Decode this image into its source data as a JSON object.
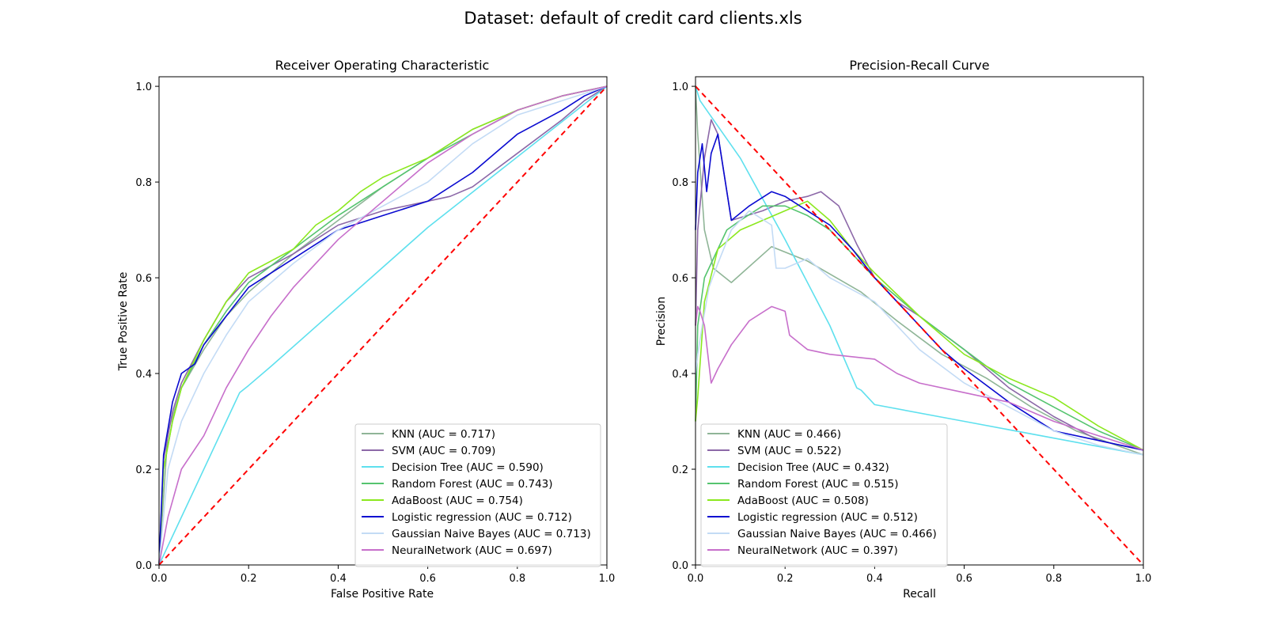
{
  "figure": {
    "suptitle": "Dataset: default of credit card clients.xls"
  },
  "chart_data": [
    {
      "type": "line",
      "id": "roc",
      "title": "Receiver Operating Characteristic",
      "xlabel": "False Positive Rate",
      "ylabel": "True Positive Rate",
      "xlim": [
        0,
        1
      ],
      "ylim": [
        0,
        1.02
      ],
      "xticks": [
        "0.0",
        "0.2",
        "0.4",
        "0.6",
        "0.8",
        "1.0"
      ],
      "yticks": [
        "0.0",
        "0.2",
        "0.4",
        "0.6",
        "0.8",
        "1.0"
      ],
      "grid": false,
      "legend_position": "lower-right",
      "reference_line": {
        "style": "dashed",
        "color": "#ff0000",
        "x": [
          0,
          1
        ],
        "y": [
          0,
          1
        ]
      },
      "series": [
        {
          "name": "KNN (AUC = 0.717)",
          "color": "#8fb597",
          "x": [
            0,
            0.02,
            0.05,
            0.1,
            0.15,
            0.2,
            0.3,
            0.4,
            0.5,
            0.6,
            0.7,
            0.8,
            0.9,
            1.0
          ],
          "y": [
            0,
            0.28,
            0.37,
            0.45,
            0.52,
            0.57,
            0.65,
            0.72,
            0.79,
            0.85,
            0.91,
            0.95,
            0.98,
            1.0
          ]
        },
        {
          "name": "SVM (AUC = 0.709)",
          "color": "#8c68a8",
          "x": [
            0,
            0.01,
            0.03,
            0.05,
            0.1,
            0.15,
            0.2,
            0.3,
            0.4,
            0.5,
            0.6,
            0.65,
            0.7,
            0.8,
            0.9,
            0.95,
            1.0
          ],
          "y": [
            0,
            0.22,
            0.32,
            0.38,
            0.47,
            0.55,
            0.6,
            0.65,
            0.71,
            0.74,
            0.76,
            0.77,
            0.79,
            0.86,
            0.93,
            0.97,
            1.0
          ]
        },
        {
          "name": "Decision Tree (AUC = 0.590)",
          "color": "#5ee0ee",
          "x": [
            0,
            0.18,
            0.2,
            0.25,
            0.6,
            1.0
          ],
          "y": [
            0,
            0.36,
            0.375,
            0.415,
            0.705,
            1.0
          ]
        },
        {
          "name": "Random Forest (AUC = 0.743)",
          "color": "#55c46f",
          "x": [
            0,
            0.01,
            0.03,
            0.05,
            0.1,
            0.15,
            0.2,
            0.3,
            0.4,
            0.5,
            0.6,
            0.7,
            0.8,
            0.9,
            1.0
          ],
          "y": [
            0,
            0.2,
            0.3,
            0.37,
            0.46,
            0.53,
            0.59,
            0.66,
            0.73,
            0.79,
            0.85,
            0.9,
            0.95,
            0.98,
            1.0
          ]
        },
        {
          "name": "AdaBoost (AUC = 0.754)",
          "color": "#8be81e",
          "x": [
            0,
            0.01,
            0.03,
            0.05,
            0.1,
            0.15,
            0.2,
            0.3,
            0.35,
            0.4,
            0.45,
            0.5,
            0.6,
            0.7,
            0.8,
            0.9,
            1.0
          ],
          "y": [
            0,
            0.2,
            0.3,
            0.37,
            0.47,
            0.55,
            0.61,
            0.66,
            0.71,
            0.74,
            0.78,
            0.81,
            0.85,
            0.91,
            0.95,
            0.98,
            1.0
          ]
        },
        {
          "name": "Logistic regression (AUC = 0.712)",
          "color": "#0a0ad0",
          "x": [
            0,
            0.01,
            0.03,
            0.05,
            0.08,
            0.1,
            0.15,
            0.2,
            0.3,
            0.4,
            0.5,
            0.6,
            0.7,
            0.8,
            0.9,
            0.95,
            1.0
          ],
          "y": [
            0,
            0.23,
            0.34,
            0.4,
            0.42,
            0.46,
            0.52,
            0.58,
            0.64,
            0.7,
            0.73,
            0.76,
            0.82,
            0.9,
            0.95,
            0.98,
            1.0
          ]
        },
        {
          "name": "Gaussian Naive Bayes (AUC = 0.713)",
          "color": "#c3dbf5",
          "x": [
            0,
            0.02,
            0.05,
            0.1,
            0.15,
            0.2,
            0.3,
            0.4,
            0.5,
            0.6,
            0.7,
            0.8,
            0.9,
            1.0
          ],
          "y": [
            0,
            0.2,
            0.3,
            0.4,
            0.48,
            0.55,
            0.63,
            0.7,
            0.75,
            0.8,
            0.88,
            0.94,
            0.97,
            1.0
          ]
        },
        {
          "name": "NeuralNetwork (AUC = 0.697)",
          "color": "#c76fcb",
          "x": [
            0,
            0.02,
            0.05,
            0.1,
            0.15,
            0.2,
            0.25,
            0.3,
            0.4,
            0.5,
            0.6,
            0.7,
            0.8,
            0.9,
            1.0
          ],
          "y": [
            0,
            0.1,
            0.2,
            0.27,
            0.37,
            0.45,
            0.52,
            0.58,
            0.68,
            0.76,
            0.84,
            0.9,
            0.95,
            0.98,
            1.0
          ]
        }
      ]
    },
    {
      "type": "line",
      "id": "pr",
      "title": "Precision-Recall Curve",
      "xlabel": "Recall",
      "ylabel": "Precision",
      "xlim": [
        0,
        1
      ],
      "ylim": [
        0,
        1.02
      ],
      "xticks": [
        "0.0",
        "0.2",
        "0.4",
        "0.6",
        "0.8",
        "1.0"
      ],
      "yticks": [
        "0.0",
        "0.2",
        "0.4",
        "0.6",
        "0.8",
        "1.0"
      ],
      "grid": false,
      "legend_position": "lower-left",
      "reference_line": {
        "style": "dashed",
        "color": "#ff0000",
        "x": [
          0,
          1
        ],
        "y": [
          1,
          0
        ]
      },
      "series": [
        {
          "name": "KNN (AUC = 0.466)",
          "color": "#8fb597",
          "x": [
            0,
            0.005,
            0.02,
            0.04,
            0.08,
            0.17,
            0.25,
            0.37,
            0.45,
            0.55,
            0.65,
            0.75,
            0.85,
            1.0
          ],
          "y": [
            1.0,
            0.9,
            0.7,
            0.62,
            0.59,
            0.665,
            0.635,
            0.57,
            0.51,
            0.44,
            0.39,
            0.33,
            0.28,
            0.23
          ]
        },
        {
          "name": "SVM (AUC = 0.522)",
          "color": "#8c68a8",
          "x": [
            0,
            0.005,
            0.02,
            0.035,
            0.05,
            0.08,
            0.15,
            0.2,
            0.25,
            0.28,
            0.32,
            0.36,
            0.4,
            0.45,
            0.5,
            0.6,
            0.7,
            0.8,
            0.9,
            1.0
          ],
          "y": [
            0.5,
            0.7,
            0.85,
            0.93,
            0.9,
            0.72,
            0.74,
            0.76,
            0.77,
            0.78,
            0.75,
            0.67,
            0.6,
            0.55,
            0.52,
            0.45,
            0.37,
            0.31,
            0.26,
            0.24
          ]
        },
        {
          "name": "Decision Tree (AUC = 0.432)",
          "color": "#5ee0ee",
          "x": [
            0,
            0.01,
            0.1,
            0.2,
            0.3,
            0.36,
            0.37,
            0.4,
            0.6,
            0.8,
            1.0
          ],
          "y": [
            1.0,
            0.97,
            0.85,
            0.68,
            0.5,
            0.37,
            0.365,
            0.335,
            0.3,
            0.265,
            0.23
          ]
        },
        {
          "name": "Random Forest (AUC = 0.515)",
          "color": "#55c46f",
          "x": [
            0,
            0.005,
            0.02,
            0.04,
            0.07,
            0.1,
            0.15,
            0.2,
            0.25,
            0.3,
            0.35,
            0.4,
            0.5,
            0.6,
            0.7,
            0.8,
            0.9,
            1.0
          ],
          "y": [
            0.3,
            0.5,
            0.6,
            0.64,
            0.7,
            0.72,
            0.75,
            0.75,
            0.73,
            0.7,
            0.65,
            0.6,
            0.52,
            0.45,
            0.38,
            0.33,
            0.28,
            0.24
          ]
        },
        {
          "name": "AdaBoost (AUC = 0.508)",
          "color": "#8be81e",
          "x": [
            0,
            0.005,
            0.02,
            0.05,
            0.1,
            0.15,
            0.2,
            0.25,
            0.3,
            0.35,
            0.4,
            0.5,
            0.6,
            0.7,
            0.8,
            0.9,
            1.0
          ],
          "y": [
            0.3,
            0.35,
            0.55,
            0.66,
            0.7,
            0.72,
            0.74,
            0.76,
            0.72,
            0.66,
            0.61,
            0.52,
            0.44,
            0.39,
            0.35,
            0.29,
            0.24
          ]
        },
        {
          "name": "Logistic regression (AUC = 0.512)",
          "color": "#0a0ad0",
          "x": [
            0,
            0.005,
            0.015,
            0.025,
            0.035,
            0.05,
            0.08,
            0.12,
            0.17,
            0.2,
            0.25,
            0.3,
            0.35,
            0.4,
            0.45,
            0.5,
            0.55,
            0.6,
            0.7,
            0.8,
            0.9,
            1.0
          ],
          "y": [
            0.7,
            0.82,
            0.88,
            0.78,
            0.86,
            0.9,
            0.72,
            0.75,
            0.78,
            0.77,
            0.74,
            0.71,
            0.66,
            0.6,
            0.55,
            0.5,
            0.45,
            0.41,
            0.34,
            0.28,
            0.26,
            0.24
          ]
        },
        {
          "name": "Gaussian Naive Bayes (AUC = 0.466)",
          "color": "#c3dbf5",
          "x": [
            0,
            0.005,
            0.015,
            0.03,
            0.05,
            0.08,
            0.12,
            0.17,
            0.18,
            0.2,
            0.25,
            0.3,
            0.4,
            0.5,
            0.6,
            0.7,
            0.8,
            0.9,
            1.0
          ],
          "y": [
            0.4,
            0.44,
            0.5,
            0.58,
            0.63,
            0.7,
            0.74,
            0.71,
            0.62,
            0.62,
            0.64,
            0.6,
            0.55,
            0.45,
            0.38,
            0.33,
            0.28,
            0.25,
            0.23
          ]
        },
        {
          "name": "NeuralNetwork (AUC = 0.397)",
          "color": "#c76fcb",
          "x": [
            0,
            0.005,
            0.01,
            0.02,
            0.035,
            0.05,
            0.08,
            0.12,
            0.17,
            0.2,
            0.21,
            0.25,
            0.3,
            0.4,
            0.45,
            0.5,
            0.6,
            0.7,
            0.8,
            0.9,
            1.0
          ],
          "y": [
            0.5,
            0.54,
            0.53,
            0.5,
            0.38,
            0.41,
            0.46,
            0.51,
            0.54,
            0.53,
            0.48,
            0.45,
            0.44,
            0.43,
            0.4,
            0.38,
            0.36,
            0.34,
            0.3,
            0.27,
            0.24
          ]
        }
      ]
    }
  ]
}
